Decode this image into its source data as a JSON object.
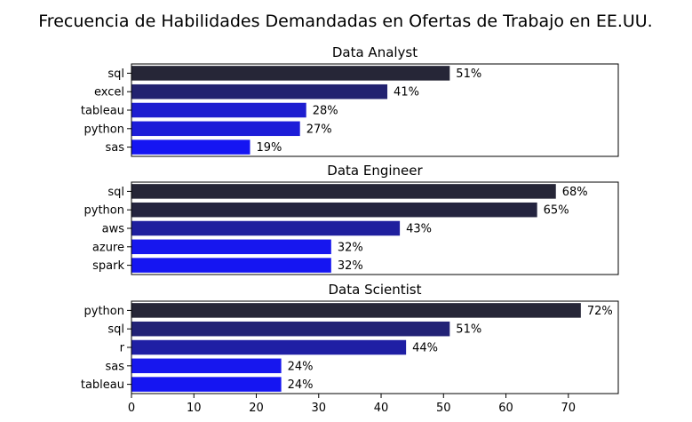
{
  "figure_title": "Frecuencia de Habilidades Demandadas en Ofertas de Trabajo en EE.UU.",
  "colors": {
    "palette_dark": "#26263a",
    "palette_mid": "#1f1f8c",
    "palette_bright": "#1515f2",
    "text": "#000000",
    "background": "#ffffff"
  },
  "chart_data": [
    {
      "type": "bar",
      "orientation": "horizontal",
      "title": "Data Analyst",
      "categories": [
        "sql",
        "excel",
        "tableau",
        "python",
        "sas"
      ],
      "values": [
        51,
        41,
        28,
        27,
        19
      ],
      "value_labels": [
        "51%",
        "41%",
        "28%",
        "27%",
        "19%"
      ],
      "bar_colors": [
        "#262637",
        "#222270",
        "#1e1ed0",
        "#1d1dd8",
        "#1515f2"
      ],
      "xlim": [
        0,
        78
      ],
      "xticks_visible": false
    },
    {
      "type": "bar",
      "orientation": "horizontal",
      "title": "Data Engineer",
      "categories": [
        "sql",
        "python",
        "aws",
        "azure",
        "spark"
      ],
      "values": [
        68,
        65,
        43,
        32,
        32
      ],
      "value_labels": [
        "68%",
        "65%",
        "43%",
        "32%",
        "32%"
      ],
      "bar_colors": [
        "#262637",
        "#24243f",
        "#1f1f9e",
        "#1717ee",
        "#1515f2"
      ],
      "xlim": [
        0,
        78
      ],
      "xticks_visible": false
    },
    {
      "type": "bar",
      "orientation": "horizontal",
      "title": "Data Scientist",
      "categories": [
        "python",
        "sql",
        "r",
        "sas",
        "tableau"
      ],
      "values": [
        72,
        51,
        44,
        24,
        24
      ],
      "value_labels": [
        "72%",
        "51%",
        "44%",
        "24%",
        "24%"
      ],
      "bar_colors": [
        "#262637",
        "#222276",
        "#1f1fa4",
        "#1717ee",
        "#1515f2"
      ],
      "xlim": [
        0,
        78
      ],
      "xticks": [
        0,
        10,
        20,
        30,
        40,
        50,
        60,
        70
      ],
      "xticks_visible": true
    }
  ]
}
